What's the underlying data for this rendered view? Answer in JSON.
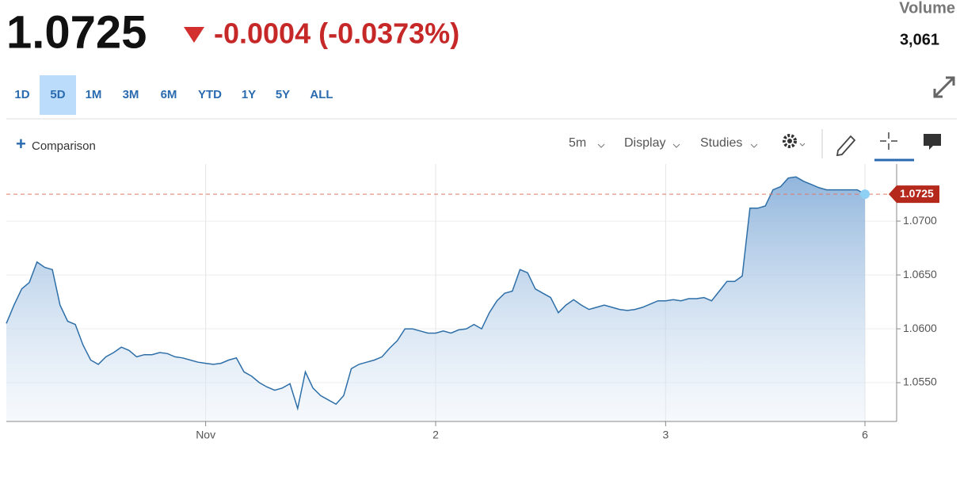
{
  "header": {
    "price": "1.0725",
    "change": "-0.0004 (-0.0373%)",
    "volume_label": "Volume",
    "volume": "3,061"
  },
  "ranges": [
    "1D",
    "5D",
    "1M",
    "3M",
    "6M",
    "YTD",
    "1Y",
    "5Y",
    "ALL"
  ],
  "selected_range": "5D",
  "toolbar": {
    "comparison": "Comparison",
    "interval": "5m",
    "display": "Display",
    "studies": "Studies"
  },
  "chart_data": {
    "type": "area",
    "color": "#2e6fa8",
    "grid": true,
    "categories": [
      null,
      null,
      null,
      null,
      null,
      null,
      null,
      null,
      null,
      null,
      null,
      null,
      null,
      null,
      null,
      null,
      null,
      null,
      null,
      null,
      null,
      null,
      null,
      null,
      null,
      null,
      "Nov",
      null,
      null,
      null,
      null,
      null,
      null,
      null,
      null,
      null,
      null,
      null,
      null,
      null,
      null,
      null,
      null,
      null,
      null,
      null,
      null,
      null,
      null,
      null,
      null,
      null,
      null,
      null,
      null,
      null,
      "2",
      null,
      null,
      null,
      null,
      null,
      null,
      null,
      null,
      null,
      null,
      null,
      null,
      null,
      null,
      null,
      null,
      null,
      null,
      null,
      null,
      null,
      null,
      null,
      null,
      null,
      null,
      null,
      null,
      null,
      "3",
      null,
      null,
      null,
      null,
      null,
      null,
      null,
      null,
      null,
      null,
      null,
      null,
      null,
      null,
      null,
      null,
      null,
      null,
      null,
      null,
      null,
      null,
      null,
      null,
      null,
      "6"
    ],
    "values": [
      1.0605,
      1.0622,
      1.0637,
      1.0643,
      1.0662,
      1.0657,
      1.0655,
      1.0622,
      1.0607,
      1.0604,
      1.0585,
      1.0571,
      1.0567,
      1.0574,
      1.0578,
      1.0583,
      1.058,
      1.0574,
      1.0576,
      1.0576,
      1.0578,
      1.0577,
      1.0574,
      1.0573,
      1.0571,
      1.0569,
      1.0568,
      1.0567,
      1.0568,
      1.0571,
      1.0573,
      1.056,
      1.0556,
      1.055,
      1.0546,
      1.0543,
      1.0545,
      1.0549,
      1.0526,
      1.056,
      1.0545,
      1.0538,
      1.0534,
      1.053,
      1.0538,
      1.0563,
      1.0567,
      1.0569,
      1.0571,
      1.0574,
      1.0582,
      1.0589,
      1.06,
      1.06,
      1.0598,
      1.0596,
      1.0596,
      1.0598,
      1.0596,
      1.0599,
      1.06,
      1.0604,
      1.06,
      1.0615,
      1.0626,
      1.0633,
      1.0635,
      1.0655,
      1.0652,
      1.0637,
      1.0633,
      1.0629,
      1.0615,
      1.0622,
      1.0627,
      1.0622,
      1.0618,
      1.062,
      1.0622,
      1.062,
      1.0618,
      1.0617,
      1.0618,
      1.062,
      1.0623,
      1.0626,
      1.0626,
      1.0627,
      1.0626,
      1.0628,
      1.0628,
      1.0629,
      1.0626,
      1.0635,
      1.0644,
      1.0644,
      1.0649,
      1.0712,
      1.0712,
      1.0714,
      1.0729,
      1.0732,
      1.074,
      1.0741,
      1.0737,
      1.0734,
      1.0731,
      1.0729,
      1.0729,
      1.0729,
      1.0729,
      1.0729,
      1.0725
    ],
    "ylim": [
      1.0514,
      1.0753
    ],
    "yticks": [
      {
        "value": 1.055,
        "label": "1.0550"
      },
      {
        "value": 1.06,
        "label": "1.0600"
      },
      {
        "value": 1.065,
        "label": "1.0650"
      },
      {
        "value": 1.07,
        "label": "1.0700"
      }
    ]
  }
}
